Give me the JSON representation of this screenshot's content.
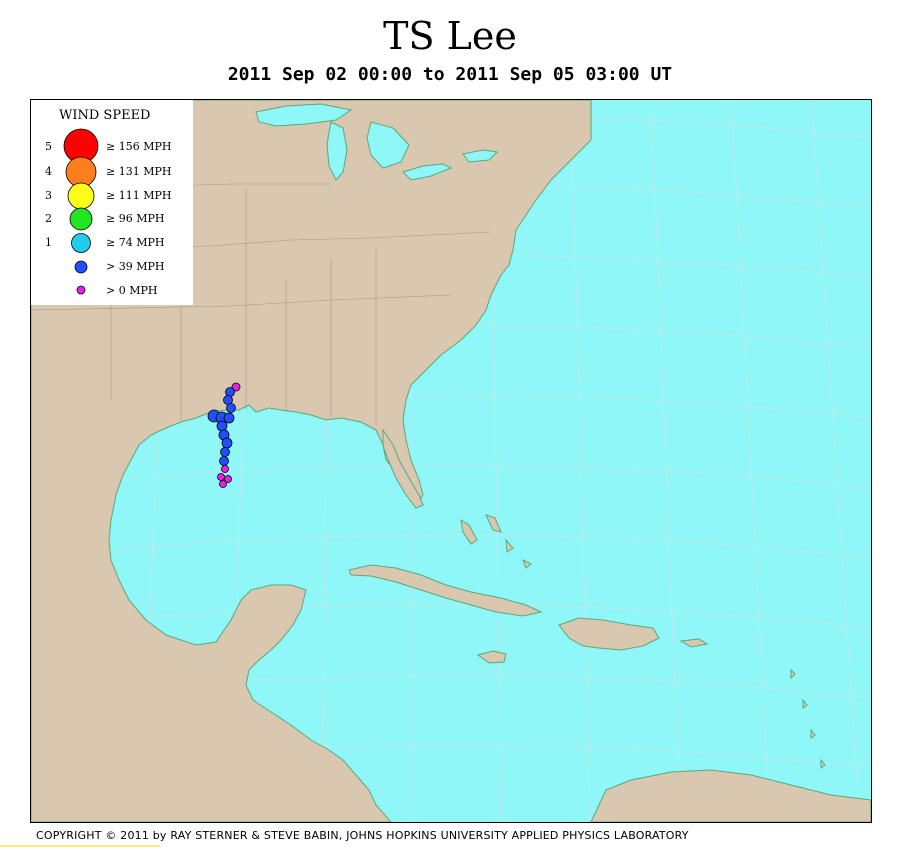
{
  "title": "TS Lee",
  "subtitle": "2011 Sep 02 00:00 to 2011 Sep 05 03:00 UT",
  "copyright": "COPYRIGHT © 2011 by RAY STERNER & STEVE BABIN, JOHNS HOPKINS UNIVERSITY APPLIED PHYSICS LABORATORY",
  "colors": {
    "ocean": "#8ff7f7",
    "land": "#d9c7b0",
    "coast": "#5aa87a",
    "grid": "#b8e6e6"
  },
  "legend": {
    "title": "WIND SPEED",
    "items": [
      {
        "category": "5",
        "label": "≥ 156 MPH",
        "color": "#ff0000"
      },
      {
        "category": "4",
        "label": "≥ 131 MPH",
        "color": "#ff7f1f"
      },
      {
        "category": "3",
        "label": "≥ 111 MPH",
        "color": "#ffff1a"
      },
      {
        "category": "2",
        "label": "≥ 96 MPH",
        "color": "#22e622"
      },
      {
        "category": "1",
        "label": "≥ 74 MPH",
        "color": "#22ccee"
      },
      {
        "category": "",
        "label": "> 39 MPH",
        "color": "#1f4fff"
      },
      {
        "category": "",
        "label": "> 0 MPH",
        "color": "#e620e6"
      }
    ]
  }
}
